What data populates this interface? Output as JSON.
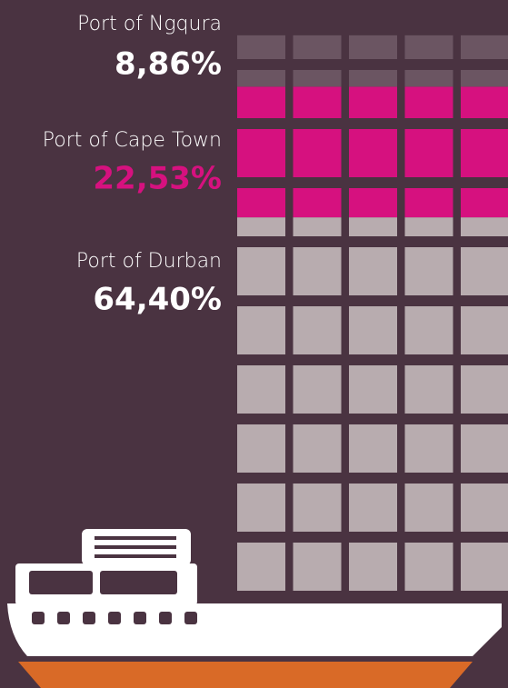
{
  "chart_data": {
    "type": "waffle",
    "series": [
      {
        "name": "Port of Ngqura",
        "values": [
          8.86
        ],
        "value_labels": [
          "8,86%"
        ],
        "color": "#6b5562",
        "label_color": "#ffffff"
      },
      {
        "name": "Port of Cape Town",
        "values": [
          22.53
        ],
        "value_labels": [
          "22,53%"
        ],
        "color": "#d6117f",
        "label_color": "#d6117f"
      },
      {
        "name": "Port of Durban",
        "values": [
          64.4
        ],
        "value_labels": [
          "64,40%"
        ],
        "color": "#b8acaf",
        "label_color": "#ffffff"
      }
    ],
    "total": 100,
    "rows": 10,
    "columns": 5
  }
}
